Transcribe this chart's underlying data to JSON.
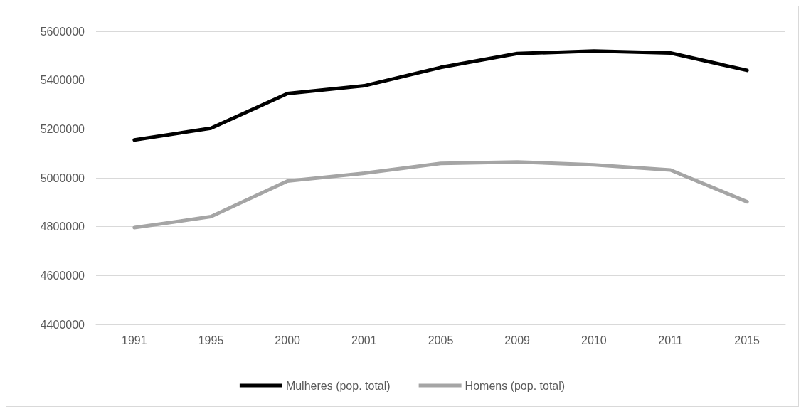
{
  "chart_data": {
    "type": "line",
    "categories": [
      "1991",
      "1995",
      "2000",
      "2001",
      "2005",
      "2009",
      "2010",
      "2011",
      "2015"
    ],
    "series": [
      {
        "name": "Mulheres (pop. total)",
        "color": "#000000",
        "values": [
          5155000,
          5203000,
          5345000,
          5377000,
          5452000,
          5509000,
          5519000,
          5511000,
          5440000
        ]
      },
      {
        "name": "Homens (pop. total)",
        "color": "#a5a5a5",
        "values": [
          4796000,
          4841000,
          4987000,
          5019000,
          5059000,
          5065000,
          5053000,
          5032000,
          4902000
        ]
      }
    ],
    "ylim": [
      4400000,
      5600000
    ],
    "yticks": [
      4400000,
      4600000,
      4800000,
      5000000,
      5200000,
      5400000,
      5600000
    ],
    "grid": "y",
    "legend": "bottom",
    "marker": "none",
    "line_style": "solid"
  }
}
